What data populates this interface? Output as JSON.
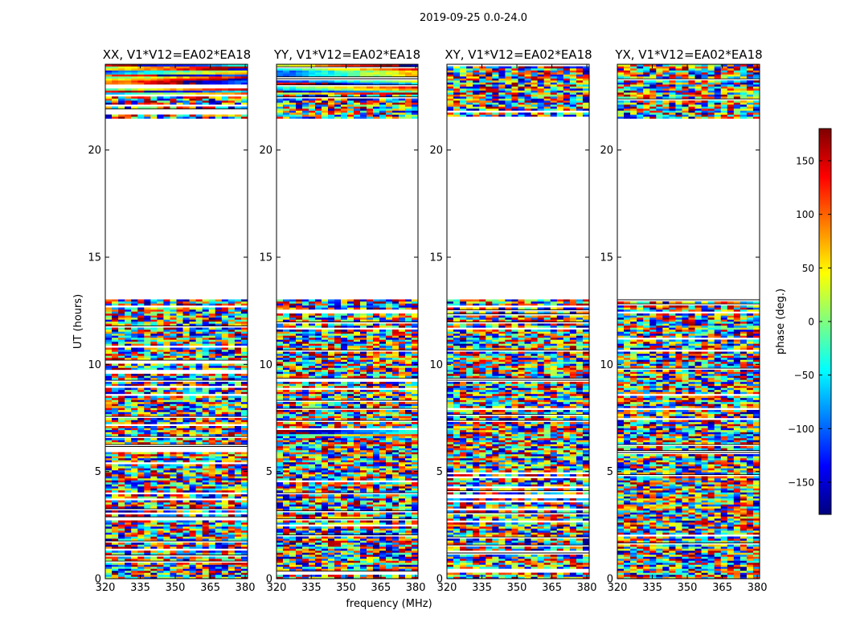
{
  "figure": {
    "suptitle": "2019-09-25 0.0-24.0"
  },
  "chart_data": [
    {
      "type": "heatmap",
      "title": "XX, V1*V12=EA02*EA18",
      "xlabel": "",
      "ylabel": "UT (hours)",
      "xlim": [
        320,
        381
      ],
      "ylim": [
        0,
        24
      ],
      "xticks": [
        320,
        335,
        350,
        365,
        380
      ],
      "yticks": [
        0,
        5,
        10,
        15,
        20
      ],
      "flagged_gap_hours": [
        13.0,
        21.5
      ],
      "coherent_bands": [
        [
          22.6,
          24.0
        ]
      ]
    },
    {
      "type": "heatmap",
      "title": "YY, V1*V12=EA02*EA18",
      "xlabel": "frequency (MHz)",
      "ylabel": "",
      "xlim": [
        320,
        381
      ],
      "ylim": [
        0,
        24
      ],
      "xticks": [
        320,
        335,
        350,
        365,
        380
      ],
      "yticks": [
        0,
        5,
        10,
        15,
        20
      ],
      "flagged_gap_hours": [
        13.0,
        21.5
      ],
      "coherent_bands": [
        [
          22.6,
          24.0
        ],
        [
          6.7,
          7.0
        ]
      ]
    },
    {
      "type": "heatmap",
      "title": "XY, V1*V12=EA02*EA18",
      "xlabel": "",
      "ylabel": "",
      "xlim": [
        320,
        381
      ],
      "ylim": [
        0,
        24
      ],
      "xticks": [
        320,
        335,
        350,
        365,
        380
      ],
      "yticks": [
        0,
        5,
        10,
        15,
        20
      ],
      "flagged_gap_hours": [
        13.0,
        21.5
      ],
      "coherent_bands": []
    },
    {
      "type": "heatmap",
      "title": "YX, V1*V12=EA02*EA18",
      "xlabel": "",
      "ylabel": "",
      "xlim": [
        320,
        381
      ],
      "ylim": [
        0,
        24
      ],
      "xticks": [
        320,
        335,
        350,
        365,
        380
      ],
      "yticks": [
        0,
        5,
        10,
        15,
        20
      ],
      "flagged_gap_hours": [
        13.0,
        21.5
      ],
      "coherent_bands": []
    }
  ],
  "colorbar": {
    "label": "phase (deg.)",
    "range": [
      -180,
      180
    ],
    "ticks": [
      150,
      100,
      50,
      0,
      -50,
      -100,
      -150
    ],
    "tick_labels": [
      "150",
      "100",
      "50",
      "0",
      "−50",
      "−100",
      "−150"
    ],
    "colormap": "jet",
    "colors": [
      "#00007f",
      "#0000ff",
      "#007fff",
      "#00ffff",
      "#7fff7f",
      "#ffff00",
      "#ff7f00",
      "#ff0000",
      "#7f0000"
    ]
  }
}
